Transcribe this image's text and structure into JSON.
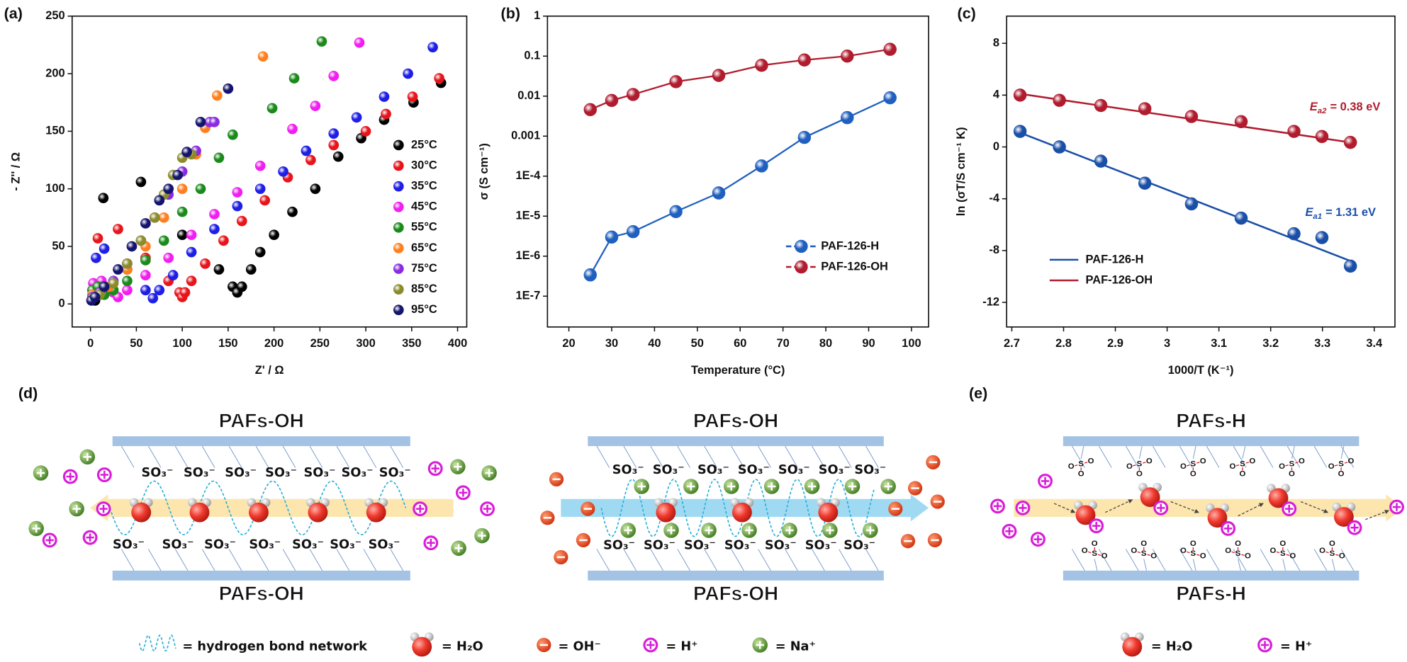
{
  "chart_data": [
    {
      "type": "scatter",
      "panel_label": "(a)",
      "xlabel": "Z' / Ω",
      "ylabel": "- Z'' / Ω",
      "xlim": [
        -20,
        410
      ],
      "ylim": [
        -20,
        250
      ],
      "xticks": [
        0,
        50,
        100,
        150,
        200,
        250,
        300,
        350,
        400
      ],
      "yticks": [
        0,
        50,
        100,
        150,
        200,
        250
      ],
      "legend_symbol": "marker",
      "series": [
        {
          "name": "25°C",
          "color": "#000000",
          "x": [
            5,
            10,
            14,
            55,
            100,
            140,
            155,
            160,
            165,
            175,
            185,
            200,
            220,
            245,
            270,
            295,
            320,
            352,
            382
          ],
          "values": [
            3,
            8,
            92,
            106,
            60,
            30,
            15,
            10,
            15,
            30,
            45,
            60,
            80,
            100,
            128,
            144,
            160,
            175,
            192
          ]
        },
        {
          "name": "30°C",
          "color": "#e8141b",
          "x": [
            8,
            30,
            60,
            85,
            97,
            100,
            103,
            110,
            125,
            145,
            165,
            190,
            215,
            240,
            265,
            300,
            322,
            351,
            380
          ],
          "values": [
            57,
            65,
            40,
            20,
            10,
            6,
            10,
            20,
            35,
            55,
            72,
            90,
            110,
            125,
            138,
            150,
            165,
            180,
            196
          ]
        },
        {
          "name": "35°C",
          "color": "#1e1ee6",
          "x": [
            6,
            15,
            40,
            60,
            68,
            75,
            90,
            110,
            135,
            160,
            185,
            210,
            235,
            265,
            290,
            320,
            346,
            373
          ],
          "values": [
            40,
            48,
            30,
            12,
            5,
            12,
            25,
            45,
            65,
            85,
            100,
            115,
            133,
            148,
            162,
            180,
            200,
            223
          ]
        },
        {
          "name": "45°C",
          "color": "#f01ef0",
          "x": [
            3,
            12,
            25,
            30,
            40,
            60,
            85,
            110,
            135,
            160,
            185,
            220,
            245,
            265,
            293
          ],
          "values": [
            18,
            20,
            10,
            6,
            12,
            25,
            40,
            60,
            78,
            97,
            120,
            152,
            172,
            198,
            227
          ]
        },
        {
          "name": "55°C",
          "color": "#1a8a1a",
          "x": [
            2,
            8,
            15,
            25,
            40,
            60,
            80,
            100,
            120,
            140,
            155,
            198,
            222,
            252
          ],
          "values": [
            12,
            15,
            8,
            12,
            20,
            38,
            55,
            80,
            100,
            127,
            147,
            170,
            196,
            228
          ]
        },
        {
          "name": "65°C",
          "color": "#ff7f1e",
          "x": [
            2,
            10,
            20,
            40,
            60,
            80,
            100,
            115,
            125,
            138,
            188
          ],
          "values": [
            8,
            10,
            15,
            30,
            50,
            75,
            100,
            130,
            153,
            181,
            215
          ]
        },
        {
          "name": "75°C",
          "color": "#8a2be2",
          "x": [
            2,
            10,
            25,
            40,
            55,
            70,
            85,
            100,
            115,
            130,
            135
          ],
          "values": [
            6,
            10,
            20,
            35,
            55,
            75,
            95,
            115,
            133,
            158,
            158
          ]
        },
        {
          "name": "85°C",
          "color": "#8b8b2a",
          "x": [
            2,
            10,
            25,
            40,
            55,
            70,
            80,
            90,
            100,
            110
          ],
          "values": [
            5,
            8,
            18,
            35,
            55,
            75,
            95,
            112,
            127,
            130
          ]
        },
        {
          "name": "95°C",
          "color": "#14146e",
          "x": [
            1,
            5,
            15,
            30,
            45,
            60,
            75,
            85,
            95,
            105,
            120,
            150
          ],
          "values": [
            3,
            6,
            15,
            30,
            50,
            70,
            90,
            100,
            112,
            132,
            158,
            187
          ]
        }
      ]
    },
    {
      "type": "line",
      "panel_label": "(b)",
      "xlabel": "Temperature (°C)",
      "ylabel": "σ (S cm⁻¹)",
      "log_y": true,
      "xlim": [
        15,
        104
      ],
      "ylim": [
        1.7e-08,
        1
      ],
      "xticks": [
        20,
        30,
        40,
        50,
        60,
        70,
        80,
        90,
        100
      ],
      "yticks": [
        {
          "value": 1e-07,
          "label": "1E-7"
        },
        {
          "value": 1e-06,
          "label": "1E-6"
        },
        {
          "value": 1e-05,
          "label": "1E-5"
        },
        {
          "value": 0.0001,
          "label": "1E-4"
        },
        0.001,
        0.01,
        0.1,
        1
      ],
      "legend_symbol": "line-marker",
      "x": [
        25,
        30,
        35,
        45,
        55,
        65,
        75,
        85,
        95
      ],
      "series": [
        {
          "name": "PAF-126-H",
          "color": "#1f5fbf",
          "values": [
            3.4e-07,
            3e-06,
            4.1e-06,
            1.3e-05,
            3.8e-05,
            0.00018,
            0.00093,
            0.0029,
            0.0091
          ]
        },
        {
          "name": "PAF-126-OH",
          "color": "#b01c2e",
          "values": [
            0.0046,
            0.0078,
            0.011,
            0.023,
            0.033,
            0.059,
            0.08,
            0.1,
            0.148
          ]
        }
      ]
    },
    {
      "type": "scatter",
      "panel_label": "(c)",
      "xlabel": "1000/T (K⁻¹)",
      "ylabel": "ln (σT/S cm⁻¹ K)",
      "xlim": [
        2.69,
        3.44
      ],
      "ylim": [
        -13.9,
        10.1
      ],
      "xticks": [
        2.7,
        2.8,
        2.9,
        3.0,
        3.1,
        3.2,
        3.3,
        3.4
      ],
      "yticks": [
        -12,
        -8,
        -4,
        0,
        4,
        8
      ],
      "legend_symbol": "line",
      "series": [
        {
          "name": "PAF-126-H",
          "color": "#1a4fa8",
          "x": [
            2.716,
            2.792,
            2.872,
            2.957,
            3.047,
            3.143,
            3.245,
            3.299,
            3.354
          ],
          "values": [
            1.2,
            0.0,
            -1.1,
            -2.8,
            -4.4,
            -5.5,
            -6.7,
            -7.0,
            -9.2
          ],
          "fit_x": [
            2.716,
            3.354
          ],
          "fit_values": [
            1.1,
            -8.8
          ],
          "annotation": {
            "symbol": "E",
            "subscript": "a1",
            "text": "= 1.31 eV"
          }
        },
        {
          "name": "PAF-126-OH",
          "color": "#b01c2e",
          "x": [
            2.716,
            2.792,
            2.872,
            2.957,
            3.047,
            3.143,
            3.245,
            3.299,
            3.354
          ],
          "values": [
            4.0,
            3.6,
            3.2,
            2.95,
            2.35,
            1.95,
            1.2,
            0.8,
            0.35
          ],
          "fit_x": [
            2.716,
            3.354
          ],
          "fit_values": [
            4.1,
            0.35
          ],
          "annotation": {
            "symbol": "E",
            "subscript": "a2",
            "text": "= 0.38 eV"
          }
        }
      ]
    }
  ],
  "diagram": {
    "panel_d": "(d)",
    "panel_e": "(e)",
    "pafs_oh": "PAFs-OH",
    "pafs_h": "PAFs-H",
    "sulfonate_ion": "SO₃⁻",
    "atom_S": "S",
    "atom_O": "O",
    "legend": {
      "hbond": "= hydrogen bond network",
      "water": "= H₂O",
      "hydroxide": "= OH⁻",
      "proton": "= H⁺",
      "sodium": "= Na⁺"
    }
  }
}
